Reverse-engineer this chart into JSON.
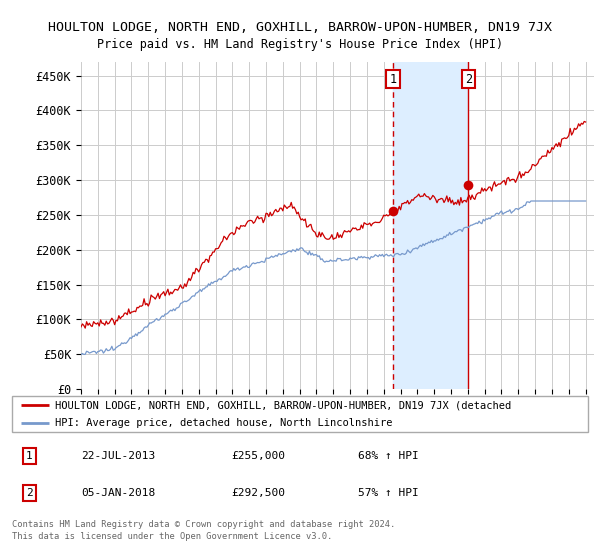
{
  "title": "HOULTON LODGE, NORTH END, GOXHILL, BARROW-UPON-HUMBER, DN19 7JX",
  "subtitle": "Price paid vs. HM Land Registry's House Price Index (HPI)",
  "ylabel_vals": [
    0,
    50000,
    100000,
    150000,
    200000,
    250000,
    300000,
    350000,
    400000,
    450000
  ],
  "ylabel_labels": [
    "£0",
    "£50K",
    "£100K",
    "£150K",
    "£200K",
    "£250K",
    "£300K",
    "£350K",
    "£400K",
    "£450K"
  ],
  "ylim": [
    0,
    470000
  ],
  "xlim_start": 1995.0,
  "xlim_end": 2025.5,
  "sale1_x": 2013.55,
  "sale1_y": 255000,
  "sale2_x": 2018.02,
  "sale2_y": 292500,
  "legend_line1": "HOULTON LODGE, NORTH END, GOXHILL, BARROW-UPON-HUMBER, DN19 7JX (detached",
  "legend_line2": "HPI: Average price, detached house, North Lincolnshire",
  "sale1_date": "22-JUL-2013",
  "sale1_price": "£255,000",
  "sale1_hpi": "68% ↑ HPI",
  "sale2_date": "05-JAN-2018",
  "sale2_price": "£292,500",
  "sale2_hpi": "57% ↑ HPI",
  "footer1": "Contains HM Land Registry data © Crown copyright and database right 2024.",
  "footer2": "This data is licensed under the Open Government Licence v3.0.",
  "red_color": "#cc0000",
  "blue_color": "#7799cc",
  "shade_color": "#ddeeff",
  "background_color": "#ffffff",
  "grid_color": "#cccccc"
}
